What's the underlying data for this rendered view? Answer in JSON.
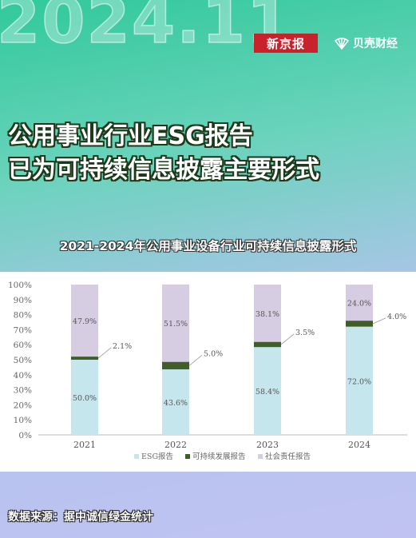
{
  "header": {
    "year_watermark": "2024.11",
    "logo_xinjingbao": "新京报",
    "logo_beike": "贝壳财经"
  },
  "headline": {
    "line1": "公用事业行业ESG报告",
    "line2": "已为可持续信息披露主要形式"
  },
  "footer": {
    "source": "数据来源：据中诚信绿金统计"
  },
  "colors": {
    "esg": "#c6e6ee",
    "sustainability": "#3f5e2a",
    "social": "#d6cde3"
  },
  "chart_data": {
    "type": "bar",
    "stacked": true,
    "title": "2021-2024年公用事业设备行业可持续信息披露形式",
    "categories": [
      "2021",
      "2022",
      "2023",
      "2024"
    ],
    "series": [
      {
        "name": "ESG报告",
        "values": [
          50.0,
          43.6,
          58.4,
          72.0
        ],
        "labels": [
          "50.0%",
          "43.6%",
          "58.4%",
          "72.0%"
        ]
      },
      {
        "name": "可持续发展报告",
        "values": [
          2.1,
          5.0,
          3.5,
          4.0
        ],
        "labels": [
          "2.1%",
          "5.0%",
          "3.5%",
          "4.0%"
        ]
      },
      {
        "name": "社会责任报告",
        "values": [
          47.9,
          51.5,
          38.1,
          24.0
        ],
        "labels": [
          "47.9%",
          "51.5%",
          "38.1%",
          "24.0%"
        ]
      }
    ],
    "yticks": [
      "0%",
      "10%",
      "20%",
      "30%",
      "40%",
      "50%",
      "60%",
      "70%",
      "80%",
      "90%",
      "100%"
    ],
    "ylim": [
      0,
      100
    ],
    "legend": "bottom"
  }
}
